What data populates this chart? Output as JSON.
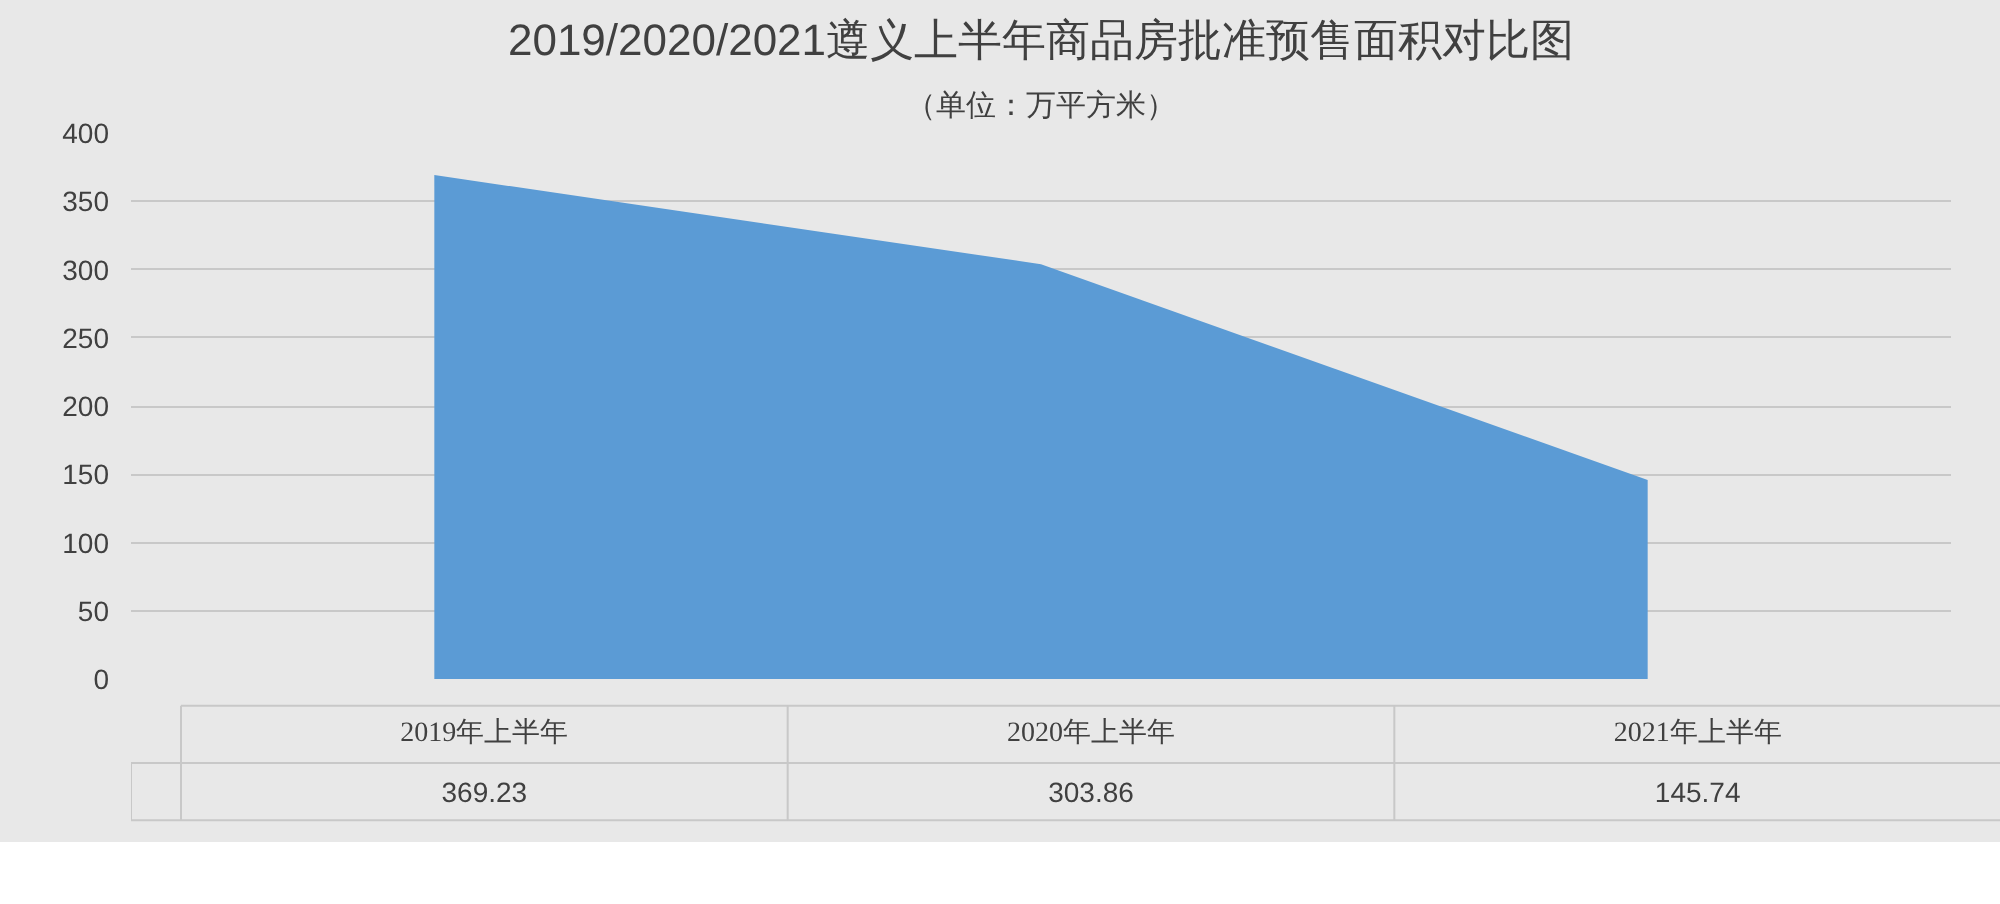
{
  "chart_data": {
    "type": "area",
    "title": "2019/2020/2021遵义上半年商品房批准预售面积对比图",
    "subtitle": "（单位：万平方米）",
    "categories": [
      "2019年上半年",
      "2020年上半年",
      "2021年上半年"
    ],
    "series": [
      {
        "color": "#5b9bd5",
        "values": [
          369.23,
          303.86,
          145.74
        ]
      }
    ],
    "ylim": [
      0,
      400
    ],
    "yticks": [
      0,
      50,
      100,
      150,
      200,
      250,
      300,
      350,
      400
    ],
    "grid": "y",
    "data_labels": true
  }
}
